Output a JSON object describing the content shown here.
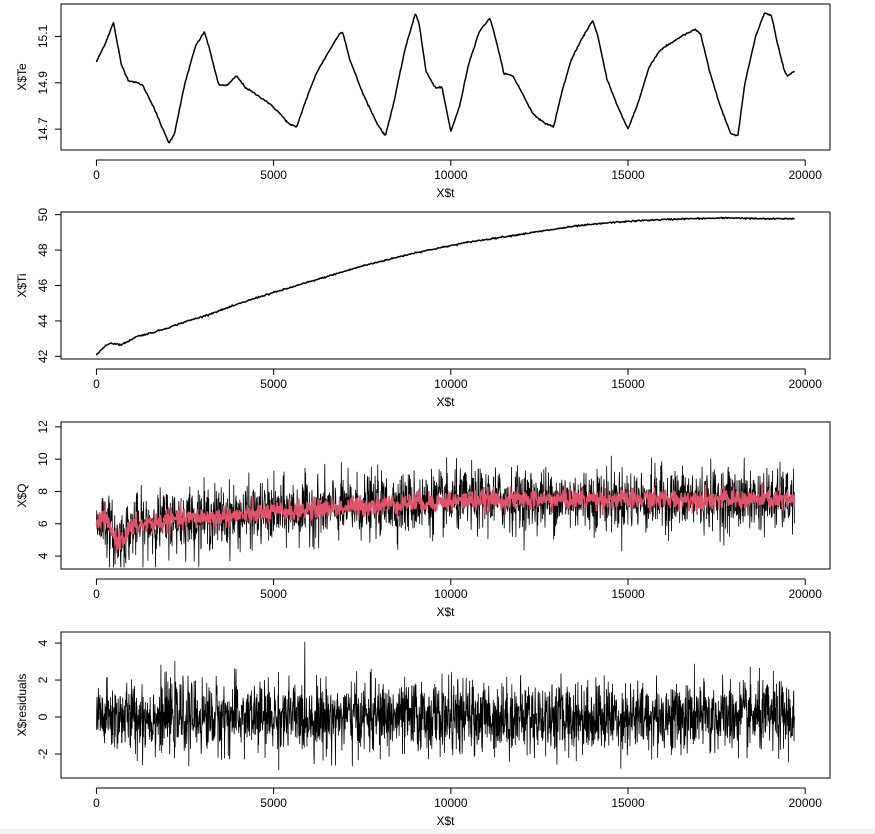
{
  "chart_data": [
    {
      "type": "line",
      "xlabel": "X$t",
      "ylabel": "X$Te",
      "xlim": [
        -1000,
        20700
      ],
      "ylim": [
        14.61,
        15.24
      ],
      "xticks": [
        "0",
        "5000",
        "10000",
        "15000",
        "20000"
      ],
      "yticks": [
        "14.7",
        "14.9",
        "15.1"
      ],
      "series": [
        {
          "color": "#000000",
          "x": [
            0,
            250,
            480,
            700,
            900,
            1150,
            1300,
            1600,
            1900,
            2050,
            2200,
            2500,
            2800,
            3050,
            3200,
            3450,
            3700,
            3950,
            4200,
            4500,
            4800,
            5100,
            5450,
            5650,
            5900,
            6200,
            6500,
            6850,
            6950,
            7150,
            7500,
            7900,
            8150,
            8400,
            8700,
            9000,
            9100,
            9300,
            9550,
            9750,
            10000,
            10250,
            10500,
            10800,
            11100,
            11250,
            11500,
            11750,
            12000,
            12300,
            12600,
            12900,
            13150,
            13400,
            13700,
            14000,
            14150,
            14400,
            14700,
            15000,
            15300,
            15600,
            15900,
            16200,
            16500,
            16900,
            17050,
            17300,
            17600,
            17900,
            18100,
            18300,
            18600,
            18850,
            19050,
            19200,
            19400,
            19500,
            19600,
            19700
          ],
          "y": [
            14.99,
            15.07,
            15.16,
            14.98,
            14.91,
            14.9,
            14.89,
            14.8,
            14.69,
            14.64,
            14.68,
            14.9,
            15.06,
            15.12,
            15.04,
            14.89,
            14.89,
            14.93,
            14.88,
            14.85,
            14.82,
            14.78,
            14.72,
            14.71,
            14.82,
            14.94,
            15.02,
            15.11,
            15.12,
            15.0,
            14.86,
            14.73,
            14.67,
            14.82,
            15.04,
            15.2,
            15.16,
            14.95,
            14.88,
            14.88,
            14.69,
            14.8,
            14.98,
            15.12,
            15.18,
            15.1,
            14.94,
            14.93,
            14.86,
            14.77,
            14.73,
            14.71,
            14.87,
            15.0,
            15.09,
            15.17,
            15.1,
            14.92,
            14.8,
            14.7,
            14.82,
            14.97,
            15.04,
            15.07,
            15.1,
            15.13,
            15.11,
            14.95,
            14.8,
            14.68,
            14.67,
            14.9,
            15.1,
            15.2,
            15.19,
            15.08,
            14.96,
            14.93,
            14.94,
            14.95
          ]
        }
      ]
    },
    {
      "type": "line",
      "xlabel": "X$t",
      "ylabel": "X$Ti",
      "xlim": [
        -1000,
        20700
      ],
      "ylim": [
        41.85,
        50.15
      ],
      "xticks": [
        "0",
        "5000",
        "10000",
        "15000",
        "20000"
      ],
      "yticks": [
        "42",
        "44",
        "46",
        "48",
        "50"
      ],
      "series": [
        {
          "color": "#000000",
          "x": [
            0,
            100,
            250,
            400,
            550,
            700,
            900,
            1100,
            1300,
            1600,
            2000,
            2500,
            3000,
            3500,
            4000,
            4500,
            5000,
            5500,
            6000,
            6500,
            7000,
            7500,
            8000,
            8500,
            9000,
            9500,
            10000,
            10500,
            11000,
            11500,
            12000,
            12500,
            13000,
            13500,
            14000,
            14500,
            15000,
            15500,
            16000,
            16500,
            17000,
            17500,
            18000,
            18500,
            19000,
            19700
          ],
          "y": [
            42.05,
            42.3,
            42.6,
            42.75,
            42.7,
            42.65,
            42.85,
            43.1,
            43.2,
            43.35,
            43.6,
            43.95,
            44.25,
            44.6,
            44.95,
            45.3,
            45.6,
            45.9,
            46.2,
            46.5,
            46.8,
            47.1,
            47.35,
            47.6,
            47.85,
            48.05,
            48.25,
            48.45,
            48.6,
            48.75,
            48.9,
            49.05,
            49.2,
            49.35,
            49.45,
            49.55,
            49.62,
            49.68,
            49.72,
            49.76,
            49.78,
            49.8,
            49.82,
            49.78,
            49.76,
            49.78
          ]
        }
      ]
    },
    {
      "type": "line",
      "xlabel": "X$t",
      "ylabel": "X$Q",
      "xlim": [
        -1000,
        20700
      ],
      "ylim": [
        3.2,
        12.3
      ],
      "xticks": [
        "0",
        "5000",
        "10000",
        "15000",
        "20000"
      ],
      "yticks": [
        "4",
        "6",
        "8",
        "10",
        "12"
      ],
      "series": [
        {
          "name": "",
          "color": "#000000",
          "band": true,
          "x": [
            0,
            200,
            400,
            600,
            800,
            1000,
            1500,
            2000,
            3000,
            4000,
            5000,
            6000,
            7000,
            8000,
            9000,
            10000,
            11000,
            12000,
            13000,
            14000,
            15000,
            16000,
            17000,
            18000,
            19000,
            19700
          ],
          "y": [
            5.8,
            6.4,
            5.6,
            4.9,
            5.3,
            5.8,
            6.0,
            6.2,
            6.4,
            6.5,
            6.7,
            6.9,
            7.0,
            7.2,
            7.3,
            7.4,
            7.5,
            7.5,
            7.5,
            7.55,
            7.5,
            7.5,
            7.55,
            7.5,
            7.5,
            7.45
          ]
        },
        {
          "name": "",
          "color": "#DF536B",
          "x": [
            0,
            200,
            400,
            600,
            800,
            1000,
            1500,
            2000,
            3000,
            4000,
            5000,
            6000,
            7000,
            8000,
            9000,
            10000,
            11000,
            12000,
            13000,
            14000,
            15000,
            16000,
            17000,
            18000,
            19000,
            19700
          ],
          "y": [
            5.8,
            6.4,
            5.6,
            4.9,
            5.3,
            5.8,
            6.0,
            6.2,
            6.4,
            6.5,
            6.7,
            6.9,
            7.0,
            7.2,
            7.3,
            7.4,
            7.5,
            7.5,
            7.5,
            7.55,
            7.5,
            7.5,
            7.55,
            7.5,
            7.5,
            7.45
          ]
        }
      ]
    },
    {
      "type": "line",
      "xlabel": "X$t",
      "ylabel": "X$residuals",
      "xlim": [
        -1000,
        20700
      ],
      "ylim": [
        -3.3,
        4.6
      ],
      "xticks": [
        "0",
        "5000",
        "10000",
        "15000",
        "20000"
      ],
      "yticks": [
        "-2",
        "0",
        "2",
        "4"
      ],
      "series": [
        {
          "color": "#000000",
          "noise": true,
          "x": [
            0,
            19700
          ],
          "y": [
            0,
            0
          ],
          "range": [
            -3.1,
            4.4
          ]
        }
      ]
    }
  ]
}
